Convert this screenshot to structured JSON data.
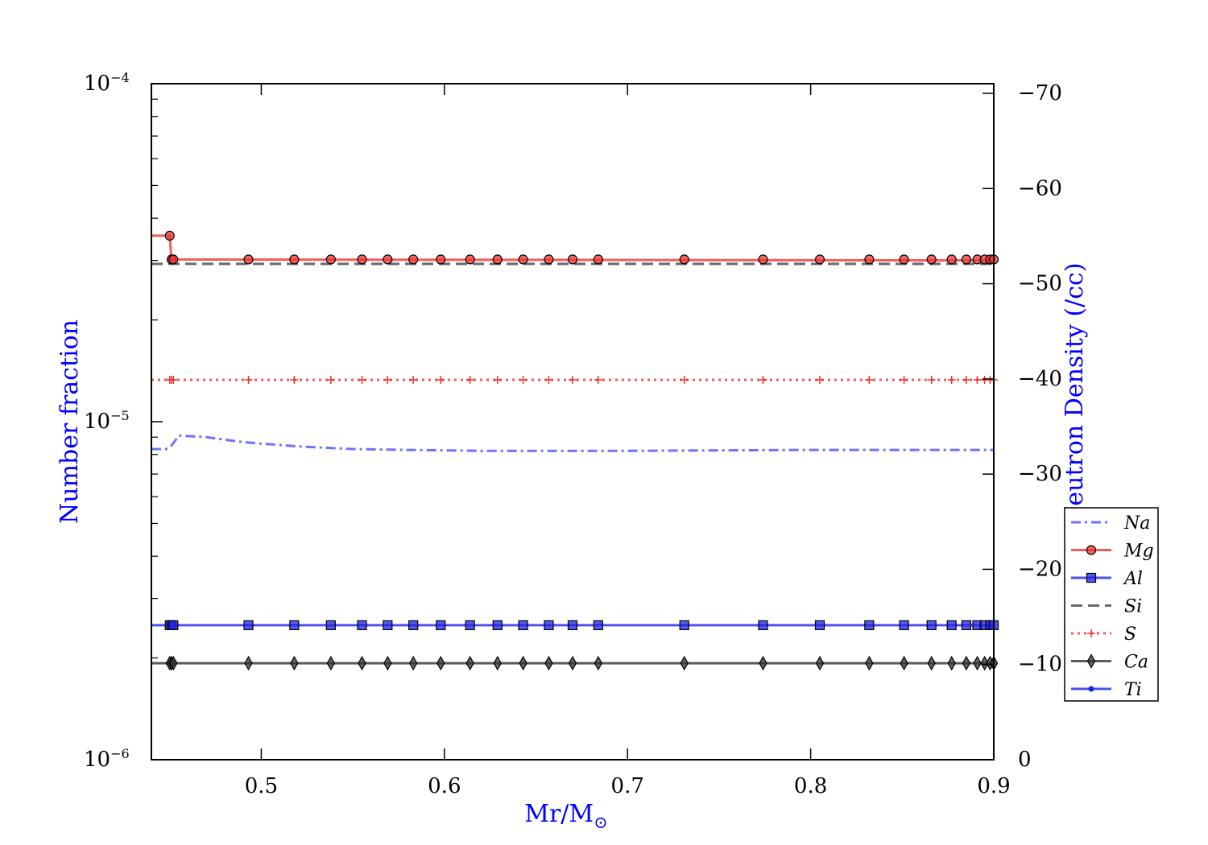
{
  "chart_data": {
    "type": "line",
    "xlabel": "Mr/M",
    "xlabel_sub": "⊙",
    "ylabel": "Number fraction",
    "y2label": "Log Neutron Density (/cc)",
    "xlim": [
      0.44,
      0.9
    ],
    "ylim": [
      1e-06,
      0.0001
    ],
    "yscale": "log",
    "y2lim": [
      0,
      -70
    ],
    "x_ticks": [
      0.5,
      0.6,
      0.7,
      0.8,
      0.9
    ],
    "x_tick_labels": [
      "0.5",
      "0.6",
      "0.7",
      "0.8",
      "0.9"
    ],
    "y_ticks": [
      1e-06,
      1e-05,
      0.0001
    ],
    "y_tick_base": "10",
    "y_tick_exponents": [
      "−6",
      "−5",
      "−4"
    ],
    "y2_ticks": [
      0,
      -10,
      -20,
      -30,
      -40,
      -50,
      -60,
      -70
    ],
    "y2_tick_labels": [
      "0",
      "−10",
      "−20",
      "−30",
      "−40",
      "−50",
      "−60",
      "−70"
    ],
    "grid": false,
    "legend_position": "right",
    "x_markers": [
      0.45,
      0.451,
      0.452,
      0.493,
      0.518,
      0.538,
      0.555,
      0.569,
      0.583,
      0.598,
      0.614,
      0.629,
      0.643,
      0.657,
      0.67,
      0.684,
      0.731,
      0.774,
      0.805,
      0.832,
      0.851,
      0.866,
      0.877,
      0.885,
      0.891,
      0.895,
      0.898,
      0.9
    ],
    "series": [
      {
        "name": "Na",
        "color": "#4d4dff",
        "style": "dashdot",
        "marker": "none",
        "x": [
          0.44,
          0.448,
          0.451,
          0.455,
          0.47,
          0.49,
          0.52,
          0.55,
          0.58,
          0.62,
          0.7,
          0.8,
          0.9
        ],
        "y": [
          8.3e-06,
          8.3e-06,
          8.5e-06,
          9.1e-06,
          9e-06,
          8.7e-06,
          8.45e-06,
          8.3e-06,
          8.25e-06,
          8.2e-06,
          8.2e-06,
          8.25e-06,
          8.25e-06
        ]
      },
      {
        "name": "Mg",
        "color": "#ee3333",
        "style": "solid",
        "marker": "circle",
        "x": [
          0.44,
          0.45,
          0.45,
          0.451,
          0.9
        ],
        "y": [
          3.55e-05,
          3.55e-05,
          3.55e-05,
          3.02e-05,
          3e-05
        ],
        "marker_y": 3.02e-05,
        "first_marker_y": 3.55e-05
      },
      {
        "name": "Al",
        "color": "#2222ee",
        "style": "solid",
        "marker": "square",
        "x": [
          0.44,
          0.9
        ],
        "y": [
          2.5e-06,
          2.5e-06
        ]
      },
      {
        "name": "Si",
        "color": "#444444",
        "style": "dashed",
        "marker": "none",
        "x": [
          0.44,
          0.9
        ],
        "y": [
          2.93e-05,
          2.93e-05
        ]
      },
      {
        "name": "S",
        "color": "#ee3333",
        "style": "dotted",
        "marker": "plus",
        "x": [
          0.44,
          0.9
        ],
        "y": [
          1.33e-05,
          1.33e-05
        ]
      },
      {
        "name": "Ca",
        "color": "#333333",
        "style": "solid",
        "marker": "diamond",
        "x": [
          0.44,
          0.9
        ],
        "y": [
          1.93e-06,
          1.93e-06
        ]
      },
      {
        "name": "Ti",
        "color": "#2222ee",
        "style": "solid",
        "marker": "dot",
        "x": [],
        "y": []
      }
    ]
  }
}
